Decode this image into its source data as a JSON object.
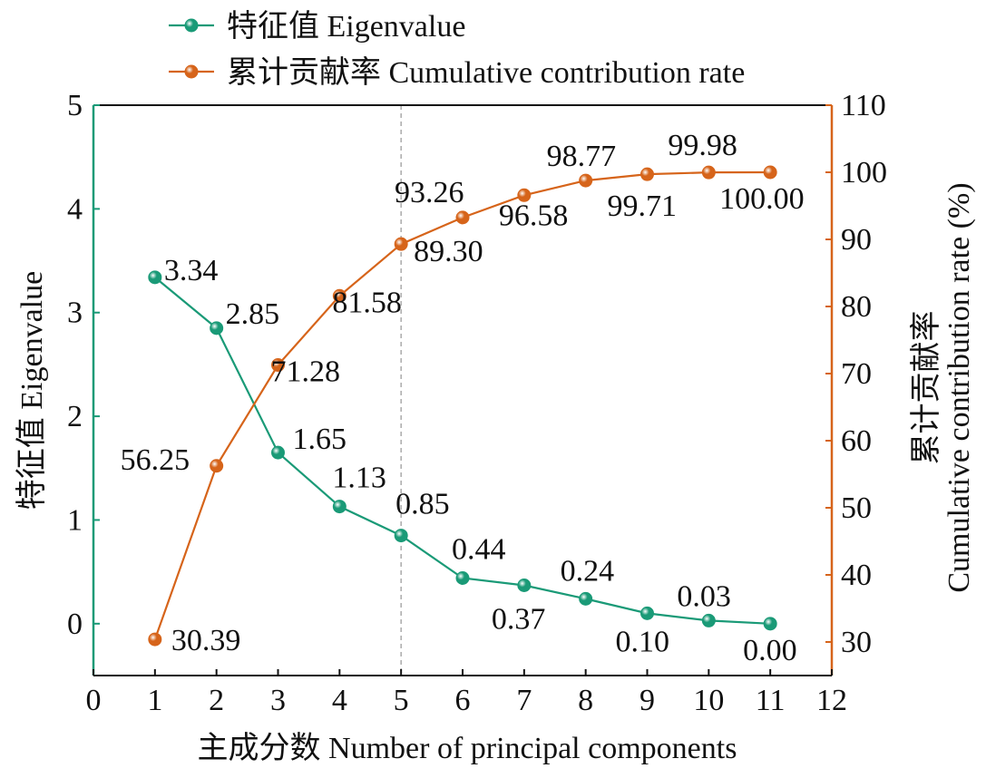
{
  "chart_data": {
    "type": "line",
    "title": "",
    "xlabel": "主成分数 Number of principal components",
    "ylabel_left": "特征值 Eigenvalue",
    "ylabel_right_line1": "累计贡献率",
    "ylabel_right_line2": "Cumulative contribution rate (%)",
    "xlim": [
      0,
      12
    ],
    "ylim_left": [
      -0.5,
      5
    ],
    "ylim_right": [
      25,
      110
    ],
    "x_ticks": [
      0,
      1,
      2,
      3,
      4,
      5,
      6,
      7,
      8,
      9,
      10,
      11,
      12
    ],
    "y_left_ticks": [
      0,
      1,
      2,
      3,
      4,
      5
    ],
    "y_right_ticks": [
      30,
      40,
      50,
      60,
      70,
      80,
      90,
      100,
      110
    ],
    "reference_line_x": 5,
    "legend_position": "top",
    "x": [
      1,
      2,
      3,
      4,
      5,
      6,
      7,
      8,
      9,
      10,
      11
    ],
    "series": [
      {
        "name": "特征值 Eigenvalue",
        "axis": "left",
        "color": "#1a9a77",
        "values": [
          3.34,
          2.85,
          1.65,
          1.13,
          0.85,
          0.44,
          0.37,
          0.24,
          0.1,
          0.03,
          0.0
        ],
        "labels": [
          "3.34",
          "2.85",
          "1.65",
          "1.13",
          "0.85",
          "0.44",
          "0.37",
          "0.24",
          "0.10",
          "0.03",
          "0.00"
        ]
      },
      {
        "name": "累计贡献率 Cumulative contribution rate",
        "axis": "right",
        "color": "#d6641a",
        "values": [
          30.39,
          56.25,
          71.28,
          81.58,
          89.3,
          93.26,
          96.58,
          98.77,
          99.71,
          99.98,
          100.0
        ],
        "labels": [
          "30.39",
          "56.25",
          "71.28",
          "81.58",
          "89.30",
          "93.26",
          "96.58",
          "98.77",
          "99.71",
          "99.98",
          "100.00"
        ]
      }
    ]
  }
}
